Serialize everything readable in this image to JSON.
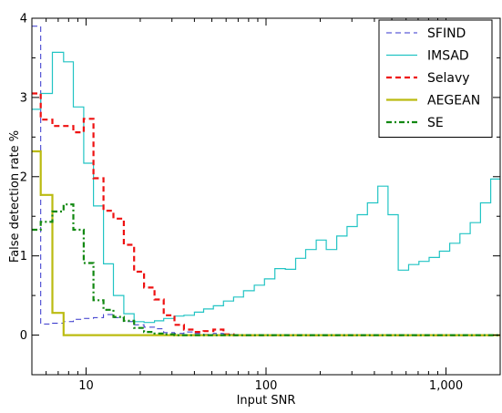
{
  "chart_data": {
    "type": "line",
    "xlabel": "Input SNR",
    "ylabel": "False detection rate %",
    "x_scale": "log",
    "xlim": [
      5,
      2000
    ],
    "ylim": [
      -0.5,
      4
    ],
    "x_ticks": [
      {
        "value": 10,
        "label": "10"
      },
      {
        "value": 100,
        "label": "100"
      },
      {
        "value": 1000,
        "label": "1,000"
      }
    ],
    "y_ticks": [
      {
        "value": 0,
        "label": "0"
      },
      {
        "value": 1,
        "label": "1"
      },
      {
        "value": 2,
        "label": "2"
      },
      {
        "value": 3,
        "label": "3"
      },
      {
        "value": 4,
        "label": "4"
      }
    ],
    "grid": false,
    "legend_position": "top-right",
    "series": [
      {
        "name": "SFIND",
        "color": "#3333cc",
        "style": "dashed",
        "step": true,
        "x": [
          5,
          5.6,
          6.5,
          7.5,
          8.5,
          9.7,
          11,
          12.5,
          14.2,
          16.2,
          18.5,
          21,
          24,
          27,
          31,
          35,
          40,
          45,
          51,
          58,
          66,
          75,
          2000
        ],
        "y": [
          3.9,
          0.14,
          0.15,
          0.17,
          0.2,
          0.21,
          0.22,
          0.26,
          0.22,
          0.17,
          0.13,
          0.1,
          0.08,
          0.03,
          0.02,
          0.04,
          0.02,
          0.01,
          0.02,
          0.01,
          0.005,
          0,
          0
        ]
      },
      {
        "name": "IMSAD",
        "color": "#22c4c4",
        "style": "solid",
        "step": true,
        "x": [
          5,
          5.6,
          6.5,
          7.5,
          8.5,
          9.7,
          11,
          12.5,
          14.2,
          16.2,
          18.5,
          21,
          24,
          27,
          31,
          35,
          40,
          45,
          51,
          58,
          66,
          75,
          86,
          98,
          112,
          128,
          146,
          166,
          190,
          216,
          247,
          282,
          321,
          366,
          418,
          476,
          543,
          620,
          707,
          806,
          919,
          1048,
          1195,
          1363,
          1554,
          1772,
          2000
        ],
        "y": [
          2.85,
          3.05,
          3.57,
          3.45,
          2.88,
          2.17,
          1.63,
          0.9,
          0.5,
          0.27,
          0.17,
          0.16,
          0.18,
          0.21,
          0.24,
          0.25,
          0.29,
          0.33,
          0.37,
          0.43,
          0.48,
          0.56,
          0.63,
          0.71,
          0.84,
          0.83,
          0.97,
          1.08,
          1.2,
          1.08,
          1.25,
          1.37,
          1.52,
          1.67,
          1.88,
          1.52,
          0.82,
          0.89,
          0.93,
          0.98,
          1.06,
          1.16,
          1.28,
          1.42,
          1.67,
          1.97,
          1.97
        ]
      },
      {
        "name": "Selavy",
        "color": "#ee1111",
        "style": "dashed",
        "step": true,
        "x": [
          5,
          5.6,
          6.5,
          7.5,
          8.5,
          9.7,
          11,
          12.5,
          14.2,
          16.2,
          18.5,
          21,
          24,
          27,
          31,
          35,
          40,
          45,
          51,
          58,
          66,
          2000
        ],
        "y": [
          3.05,
          2.72,
          2.64,
          2.64,
          2.56,
          2.73,
          1.98,
          1.57,
          1.47,
          1.14,
          0.8,
          0.6,
          0.45,
          0.25,
          0.13,
          0.07,
          0.04,
          0.05,
          0.07,
          0.01,
          0.0,
          0.0
        ]
      },
      {
        "name": "AEGEAN",
        "color": "#bbbb11",
        "style": "solid",
        "step": true,
        "x": [
          5,
          5.6,
          6.5,
          7.5,
          2000
        ],
        "y": [
          2.32,
          1.77,
          0.28,
          0.0,
          0.0
        ]
      },
      {
        "name": "SE",
        "color": "#118811",
        "style": "dashdot",
        "step": true,
        "x": [
          5,
          5.6,
          6.5,
          7.5,
          8.5,
          9.7,
          11,
          12.5,
          14.2,
          16.2,
          18.5,
          21,
          24,
          27,
          31,
          2000
        ],
        "y": [
          1.33,
          1.43,
          1.56,
          1.65,
          1.33,
          0.91,
          0.44,
          0.32,
          0.23,
          0.18,
          0.09,
          0.04,
          0.02,
          0.01,
          0.0,
          0.0
        ]
      }
    ]
  }
}
